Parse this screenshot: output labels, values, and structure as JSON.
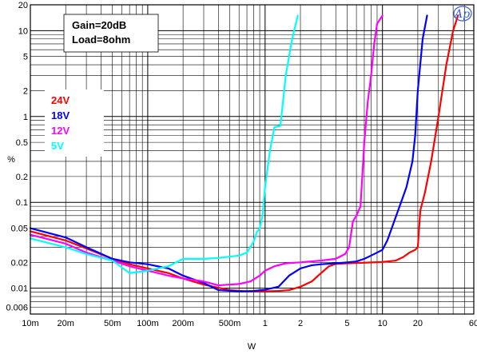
{
  "chart_data": {
    "type": "line",
    "title": "",
    "xlabel": "W",
    "ylabel": "%",
    "x_scale": "log",
    "y_scale": "log",
    "xlim": [
      0.01,
      60
    ],
    "ylim": [
      0.005,
      20
    ],
    "grid": true,
    "legend_placement": "left",
    "x_ticks": [
      {
        "v": 0.01,
        "label": "10m"
      },
      {
        "v": 0.02,
        "label": "20m"
      },
      {
        "v": 0.05,
        "label": "50m"
      },
      {
        "v": 0.1,
        "label": "100m"
      },
      {
        "v": 0.2,
        "label": "200m"
      },
      {
        "v": 0.5,
        "label": "500m"
      },
      {
        "v": 1,
        "label": "1"
      },
      {
        "v": 2,
        "label": "2"
      },
      {
        "v": 5,
        "label": "5"
      },
      {
        "v": 10,
        "label": "10"
      },
      {
        "v": 20,
        "label": "20"
      },
      {
        "v": 60,
        "label": "60"
      }
    ],
    "y_ticks": [
      {
        "v": 20,
        "label": "20"
      },
      {
        "v": 10,
        "label": "10"
      },
      {
        "v": 5,
        "label": "5"
      },
      {
        "v": 2,
        "label": "2"
      },
      {
        "v": 1,
        "label": "1"
      },
      {
        "v": 0.5,
        "label": "0.5"
      },
      {
        "v": 0.2,
        "label": "0.2"
      },
      {
        "v": 0.1,
        "label": "0.1"
      },
      {
        "v": 0.05,
        "label": "0.05"
      },
      {
        "v": 0.02,
        "label": "0.02"
      },
      {
        "v": 0.01,
        "label": "0.01"
      },
      {
        "v": 0.006,
        "label": "0.006"
      }
    ],
    "annotations": [
      "Gain=20dB",
      "Load=8ohm"
    ],
    "series": [
      {
        "name": "24V",
        "color": "#ff0000",
        "points": [
          [
            0.01,
            0.046
          ],
          [
            0.02,
            0.036
          ],
          [
            0.03,
            0.029
          ],
          [
            0.05,
            0.022
          ],
          [
            0.07,
            0.019
          ],
          [
            0.1,
            0.017
          ],
          [
            0.15,
            0.015
          ],
          [
            0.2,
            0.013
          ],
          [
            0.3,
            0.011
          ],
          [
            0.5,
            0.0095
          ],
          [
            0.7,
            0.0092
          ],
          [
            1,
            0.0092
          ],
          [
            1.3,
            0.0093
          ],
          [
            1.6,
            0.0095
          ],
          [
            2,
            0.0104
          ],
          [
            2.5,
            0.012
          ],
          [
            3,
            0.015
          ],
          [
            3.5,
            0.018
          ],
          [
            4,
            0.0192
          ],
          [
            5,
            0.0195
          ],
          [
            7,
            0.0198
          ],
          [
            10,
            0.0202
          ],
          [
            13,
            0.021
          ],
          [
            15,
            0.023
          ],
          [
            17,
            0.026
          ],
          [
            19,
            0.028
          ],
          [
            20,
            0.03
          ],
          [
            21,
            0.08
          ],
          [
            23,
            0.13
          ],
          [
            26,
            0.3
          ],
          [
            30,
            1
          ],
          [
            35,
            4
          ],
          [
            40,
            10
          ],
          [
            44,
            15
          ]
        ]
      },
      {
        "name": "18V",
        "color": "#0000ff",
        "points": [
          [
            0.01,
            0.05
          ],
          [
            0.02,
            0.039
          ],
          [
            0.03,
            0.03
          ],
          [
            0.05,
            0.022
          ],
          [
            0.07,
            0.02
          ],
          [
            0.1,
            0.019
          ],
          [
            0.15,
            0.017
          ],
          [
            0.2,
            0.014
          ],
          [
            0.3,
            0.0115
          ],
          [
            0.4,
            0.0095
          ],
          [
            0.6,
            0.0092
          ],
          [
            0.8,
            0.0093
          ],
          [
            1,
            0.0096
          ],
          [
            1.3,
            0.0104
          ],
          [
            1.6,
            0.014
          ],
          [
            2,
            0.017
          ],
          [
            2.5,
            0.0185
          ],
          [
            3,
            0.019
          ],
          [
            4,
            0.0195
          ],
          [
            5,
            0.02
          ],
          [
            6,
            0.0205
          ],
          [
            7,
            0.022
          ],
          [
            8,
            0.024
          ],
          [
            9,
            0.026
          ],
          [
            10,
            0.028
          ],
          [
            11,
            0.036
          ],
          [
            12,
            0.05
          ],
          [
            14,
            0.09
          ],
          [
            16,
            0.15
          ],
          [
            18,
            0.3
          ],
          [
            19,
            0.6
          ],
          [
            20,
            2
          ],
          [
            22,
            8
          ],
          [
            24,
            15
          ]
        ]
      },
      {
        "name": "12V",
        "color": "#ff00ff",
        "points": [
          [
            0.01,
            0.042
          ],
          [
            0.02,
            0.033
          ],
          [
            0.03,
            0.026
          ],
          [
            0.05,
            0.021
          ],
          [
            0.07,
            0.018
          ],
          [
            0.1,
            0.016
          ],
          [
            0.15,
            0.014
          ],
          [
            0.2,
            0.013
          ],
          [
            0.3,
            0.012
          ],
          [
            0.4,
            0.0108
          ],
          [
            0.6,
            0.0112
          ],
          [
            0.75,
            0.012
          ],
          [
            0.9,
            0.014
          ],
          [
            1,
            0.016
          ],
          [
            1.2,
            0.018
          ],
          [
            1.5,
            0.0195
          ],
          [
            2,
            0.02
          ],
          [
            3,
            0.021
          ],
          [
            4,
            0.022
          ],
          [
            4.8,
            0.025
          ],
          [
            5.2,
            0.03
          ],
          [
            5.6,
            0.06
          ],
          [
            6,
            0.07
          ],
          [
            6.5,
            0.09
          ],
          [
            7,
            0.5
          ],
          [
            7.5,
            1.5
          ],
          [
            8,
            3
          ],
          [
            8.5,
            7
          ],
          [
            9,
            12
          ],
          [
            10,
            15
          ]
        ]
      },
      {
        "name": "5V",
        "color": "#00ffff",
        "points": [
          [
            0.01,
            0.038
          ],
          [
            0.02,
            0.03
          ],
          [
            0.03,
            0.025
          ],
          [
            0.05,
            0.021
          ],
          [
            0.07,
            0.015
          ],
          [
            0.1,
            0.016
          ],
          [
            0.15,
            0.018
          ],
          [
            0.2,
            0.022
          ],
          [
            0.3,
            0.022
          ],
          [
            0.4,
            0.0225
          ],
          [
            0.6,
            0.024
          ],
          [
            0.7,
            0.026
          ],
          [
            0.8,
            0.035
          ],
          [
            0.85,
            0.045
          ],
          [
            0.9,
            0.05
          ],
          [
            0.95,
            0.07
          ],
          [
            1,
            0.15
          ],
          [
            1.1,
            0.4
          ],
          [
            1.2,
            0.75
          ],
          [
            1.35,
            0.78
          ],
          [
            1.5,
            3
          ],
          [
            1.7,
            8
          ],
          [
            1.9,
            15
          ]
        ]
      }
    ]
  }
}
